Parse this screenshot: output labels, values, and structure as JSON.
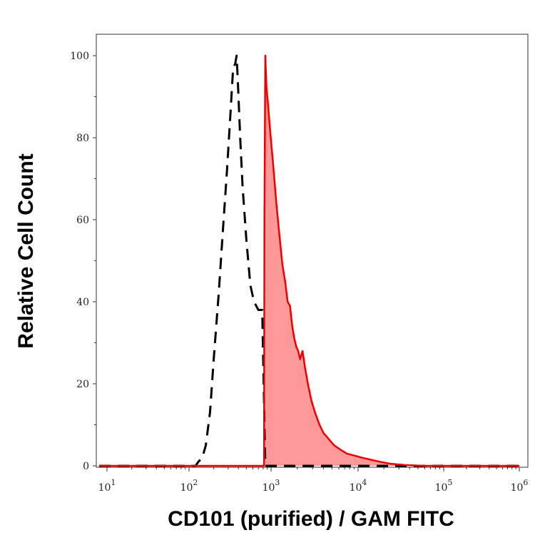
{
  "chart_data": {
    "type": "area",
    "title": "",
    "xlabel": "CD101 (purified) / GAM FITC",
    "ylabel": "Relative Cell Count",
    "x_scale": "log",
    "xlim": [
      10,
      1000000
    ],
    "ylim": [
      0,
      100
    ],
    "grid": false,
    "x_ticks": [
      {
        "value": 10,
        "base": "10",
        "exp": "1"
      },
      {
        "value": 100,
        "base": "10",
        "exp": "2"
      },
      {
        "value": 1000,
        "base": "10",
        "exp": "3"
      },
      {
        "value": 10000,
        "base": "10",
        "exp": "4"
      },
      {
        "value": 100000,
        "base": "10",
        "exp": "5"
      },
      {
        "value": 1000000,
        "base": "10",
        "exp": "6"
      }
    ],
    "y_ticks": [
      {
        "value": 0,
        "label": "0"
      },
      {
        "value": 20,
        "label": "20"
      },
      {
        "value": 40,
        "label": "40"
      },
      {
        "value": 60,
        "label": "60"
      },
      {
        "value": 80,
        "label": "80"
      },
      {
        "value": 100,
        "label": "100"
      }
    ],
    "series": [
      {
        "style": "dashed",
        "color": "#000000",
        "fill": "none",
        "x": [
          8,
          120,
          130,
          145,
          160,
          180,
          200,
          230,
          260,
          290,
          320,
          345,
          365,
          380,
          395,
          420,
          450,
          500,
          560,
          620,
          700,
          780,
          850,
          1000000
        ],
        "y": [
          0,
          0,
          1,
          2,
          5,
          13,
          26,
          42,
          58,
          72,
          86,
          97,
          98,
          100,
          93,
          80,
          68,
          55,
          44,
          40,
          38,
          38,
          0,
          0
        ]
      },
      {
        "style": "solid",
        "color": "#ee0000",
        "fill": "#ff9999",
        "x": [
          8,
          820,
          830,
          850,
          880,
          920,
          970,
          1050,
          1150,
          1250,
          1350,
          1450,
          1550,
          1650,
          1750,
          1850,
          1950,
          2050,
          2150,
          2300,
          2450,
          2650,
          2900,
          3200,
          3600,
          4000,
          4600,
          5300,
          6200,
          7400,
          9000,
          11000,
          14000,
          18000,
          24000,
          35000,
          60000,
          1000000
        ],
        "y": [
          0,
          0,
          60,
          100,
          92,
          88,
          82,
          74,
          64,
          56,
          49,
          45,
          40,
          39,
          34,
          31,
          29,
          28,
          26,
          28,
          24,
          20,
          16,
          13,
          10,
          8,
          6.5,
          5,
          4,
          3,
          2.5,
          2,
          1.5,
          1,
          0.5,
          0.2,
          0,
          0
        ]
      }
    ]
  }
}
